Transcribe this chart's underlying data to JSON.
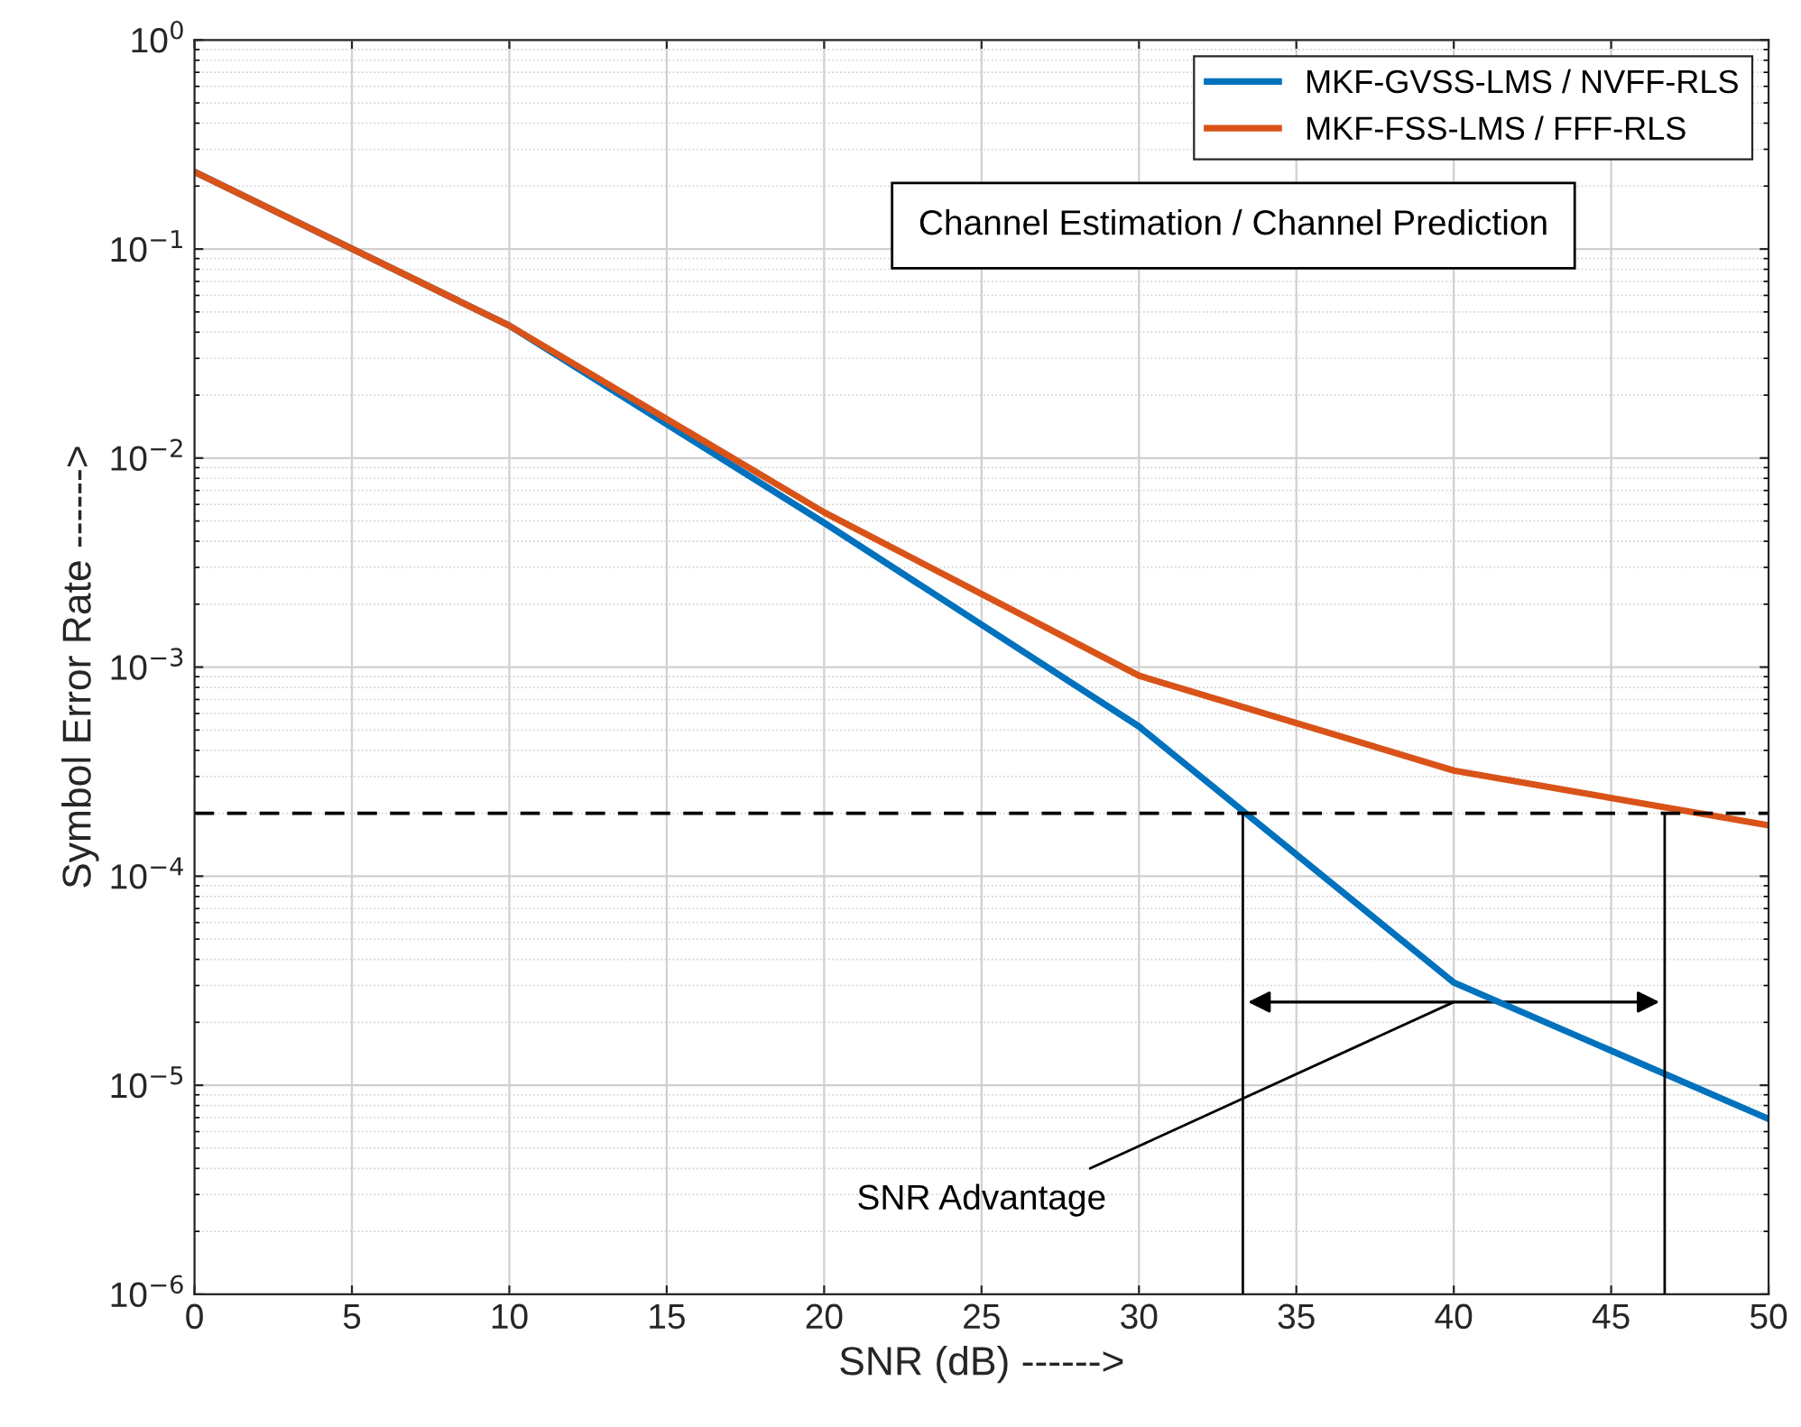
{
  "chart_data": {
    "type": "line",
    "xlabel": "SNR (dB) ------>",
    "ylabel": "Symbol Error Rate ------>",
    "x": [
      0,
      10,
      20,
      30,
      40,
      50
    ],
    "series": [
      {
        "name": "MKF-GVSS-LMS / NVFF-RLS",
        "color": "#0072bd",
        "values": [
          0.234,
          0.043,
          0.0049,
          0.00052,
          3.1e-05,
          6.9e-06
        ]
      },
      {
        "name": "MKF-FSS-LMS / FFF-RLS",
        "color": "#d95319",
        "values": [
          0.234,
          0.043,
          0.0055,
          0.00091,
          0.00032,
          0.000175
        ]
      }
    ],
    "log": "y",
    "xlim": [
      0,
      50
    ],
    "ylim": [
      1e-06,
      1
    ],
    "xticks": [
      0,
      5,
      10,
      15,
      20,
      25,
      30,
      35,
      40,
      45,
      50
    ],
    "yticks": [
      {
        "value": 1e-06,
        "label": "10$^{−6}$"
      },
      {
        "value": 1e-05,
        "label": "10$^{−5}$"
      },
      {
        "value": 0.0001,
        "label": "10$^{−4}$"
      },
      {
        "value": 0.001,
        "label": "10$^{−3}$"
      },
      {
        "value": 0.01,
        "label": "10$^{−2}$"
      },
      {
        "value": 0.1,
        "label": "10$^{−1}$"
      },
      {
        "value": 1,
        "label": "10$^{0}$"
      }
    ],
    "grid": true,
    "legend": "top right",
    "line_style": "solid",
    "marker": "none",
    "ref_lines": [
      {
        "axis": "y",
        "value": 0.0002,
        "color": "#000000",
        "line_style": "dashed"
      },
      {
        "axis": "x",
        "value": 33.3,
        "color": "#000000",
        "line_style": "solid"
      },
      {
        "axis": "x",
        "value": 46.7,
        "color": "#000000",
        "line_style": "solid"
      }
    ],
    "annotations": [
      "Channel Estimation / Channel Prediction",
      "SNR Advantage"
    ]
  }
}
